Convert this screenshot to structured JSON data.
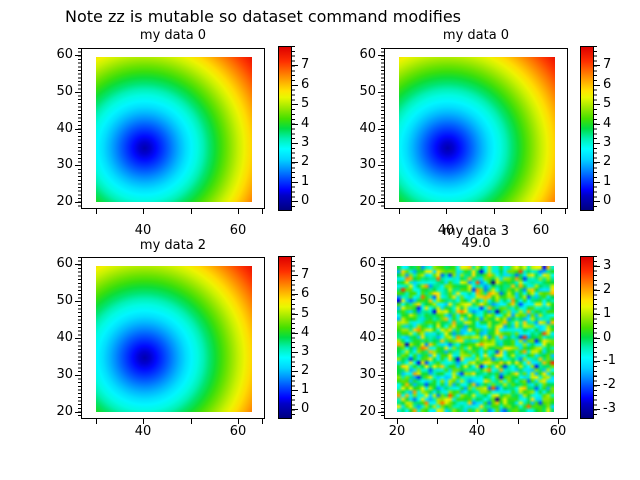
{
  "figure_title": "Note zz is mutable so dataset command modifies",
  "colormap": [
    [
      0,
      "#000080"
    ],
    [
      0.09,
      "#0000c8"
    ],
    [
      0.125,
      "#0000ff"
    ],
    [
      0.19,
      "#0048ff"
    ],
    [
      0.25,
      "#0090ff"
    ],
    [
      0.31,
      "#00d4ff"
    ],
    [
      0.375,
      "#00ffff"
    ],
    [
      0.44,
      "#00f0b0"
    ],
    [
      0.5,
      "#00dd44"
    ],
    [
      0.56,
      "#44e000"
    ],
    [
      0.625,
      "#9ae800"
    ],
    [
      0.69,
      "#e8f800"
    ],
    [
      0.73,
      "#ffe400"
    ],
    [
      0.78,
      "#ffb400"
    ],
    [
      0.84,
      "#ff7800"
    ],
    [
      0.91,
      "#ff3000"
    ],
    [
      1,
      "#dd0000"
    ]
  ],
  "chart_data": [
    {
      "type": "heatmap",
      "position": "top-left",
      "title": "my data 0",
      "x_range": [
        26.8,
        65.7
      ],
      "y_range": [
        18,
        62
      ],
      "x_ticks": [
        30,
        40,
        50,
        60,
        65
      ],
      "x_ticks_labeled": [
        40,
        60
      ],
      "y_ticks": [
        60,
        50,
        40,
        30,
        20
      ],
      "image_extent": {
        "x": [
          30,
          63
        ],
        "y": [
          20,
          59.5
        ]
      },
      "z_model": {
        "kind": "radial-distance",
        "center_x": 40.3,
        "center_y": 34.7,
        "z_at_center": 0,
        "z_at_far_corner": 7.7
      },
      "colorbar": {
        "range": [
          -0.5,
          8.0
        ],
        "ticks": [
          7,
          6,
          5,
          4,
          3,
          2,
          1,
          0
        ]
      }
    },
    {
      "type": "heatmap",
      "position": "top-right",
      "title": "my data 0",
      "x_range": [
        26.8,
        65.7
      ],
      "y_range": [
        18,
        62
      ],
      "x_ticks": [
        30,
        40,
        50,
        60,
        65
      ],
      "x_ticks_labeled": [
        40,
        60
      ],
      "y_ticks": [
        60,
        50,
        40,
        30,
        20
      ],
      "image_extent": {
        "x": [
          30,
          63
        ],
        "y": [
          20,
          59.5
        ]
      },
      "z_model": {
        "kind": "radial-distance",
        "center_x": 40.3,
        "center_y": 34.7,
        "z_at_center": 0,
        "z_at_far_corner": 7.7
      },
      "colorbar": {
        "range": [
          -0.5,
          8.0
        ],
        "ticks": [
          7,
          6,
          5,
          4,
          3,
          2,
          1,
          0
        ]
      }
    },
    {
      "type": "heatmap",
      "position": "bottom-left",
      "title": "my data 2",
      "x_range": [
        26.8,
        65.7
      ],
      "y_range": [
        18,
        62
      ],
      "x_ticks": [
        30,
        40,
        50,
        60,
        65
      ],
      "x_ticks_labeled": [
        40,
        60
      ],
      "y_ticks": [
        60,
        50,
        40,
        30,
        20
      ],
      "image_extent": {
        "x": [
          30,
          63
        ],
        "y": [
          20,
          59.5
        ]
      },
      "z_model": {
        "kind": "radial-distance",
        "center_x": 40.3,
        "center_y": 34.7,
        "z_at_center": 0,
        "z_at_far_corner": 7.7
      },
      "colorbar": {
        "range": [
          -0.5,
          8.0
        ],
        "ticks": [
          7,
          6,
          5,
          4,
          3,
          2,
          1,
          0
        ]
      }
    },
    {
      "type": "heatmap",
      "position": "bottom-right",
      "title": "my data 3",
      "subtitle": "49.0",
      "x_range": [
        16.8,
        62.5
      ],
      "y_range": [
        18,
        62
      ],
      "x_ticks": [
        20,
        30,
        40,
        50,
        60
      ],
      "x_ticks_labeled": [
        20,
        40,
        60
      ],
      "y_ticks": [
        60,
        50,
        40,
        30,
        20
      ],
      "image_extent": {
        "x": [
          20,
          59
        ],
        "y": [
          20,
          59.5
        ]
      },
      "z_model": {
        "kind": "gaussian-noise",
        "mean": 0,
        "sigma": 1,
        "grid_nx": 40,
        "grid_ny": 40,
        "seed": 7
      },
      "colorbar": {
        "range": [
          -3.4,
          3.4
        ],
        "ticks": [
          3,
          2,
          1,
          0,
          -1,
          -2,
          -3
        ]
      }
    }
  ]
}
